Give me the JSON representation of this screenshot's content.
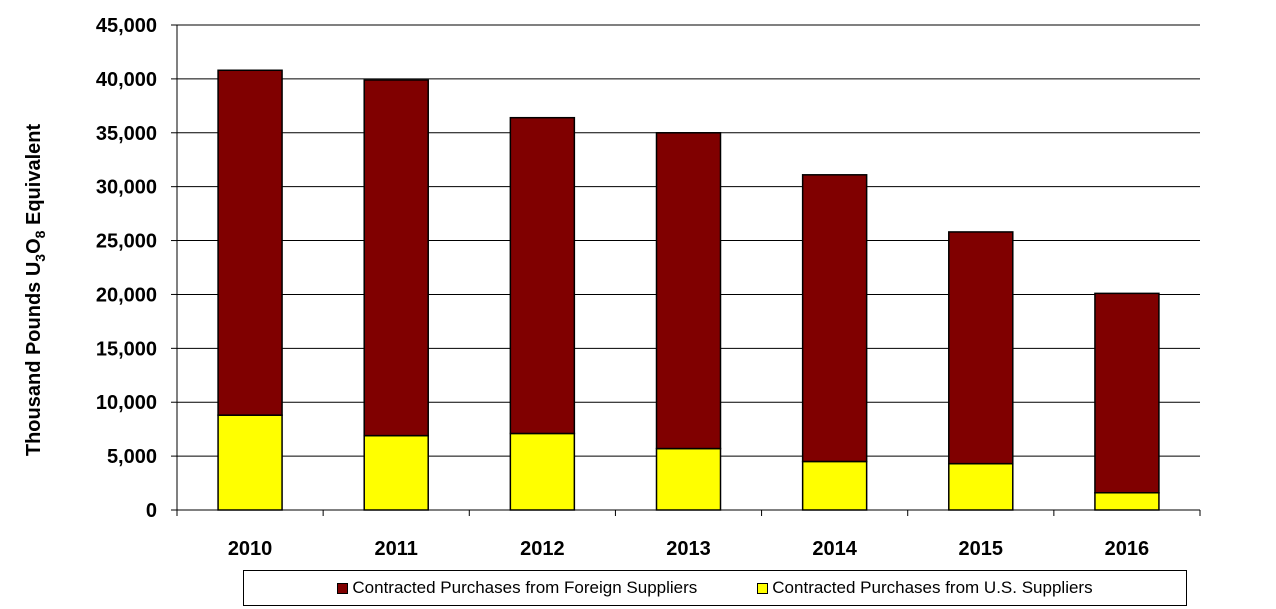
{
  "chart_data": {
    "type": "bar",
    "stacked": true,
    "title": "",
    "xlabel": "",
    "ylabel_parts": [
      "Thousand Pounds U",
      "3",
      "O",
      "8",
      " Equivalent"
    ],
    "categories": [
      "2010",
      "2011",
      "2012",
      "2013",
      "2014",
      "2015",
      "2016"
    ],
    "ylim": [
      0,
      45000
    ],
    "yticks": [
      0,
      5000,
      10000,
      15000,
      20000,
      25000,
      30000,
      35000,
      40000,
      45000
    ],
    "ytick_labels": [
      "0",
      "5,000",
      "10,000",
      "15,000",
      "20,000",
      "25,000",
      "30,000",
      "35,000",
      "40,000",
      "45,000"
    ],
    "grid": "horizontal",
    "legend_position": "bottom",
    "series": [
      {
        "name": "Contracted Purchases from U.S. Suppliers",
        "values": [
          8800,
          6900,
          7100,
          5700,
          4500,
          4300,
          1600
        ],
        "color": "#ffff00"
      },
      {
        "name": "Contracted Purchases from Foreign Suppliers",
        "values": [
          32000,
          33000,
          29300,
          29300,
          26600,
          21500,
          18500
        ],
        "color": "#800000"
      }
    ],
    "legend": [
      {
        "label": "Contracted Purchases from Foreign Suppliers",
        "color": "#800000"
      },
      {
        "label": "Contracted Purchases from U.S. Suppliers",
        "color": "#ffff00"
      }
    ]
  }
}
